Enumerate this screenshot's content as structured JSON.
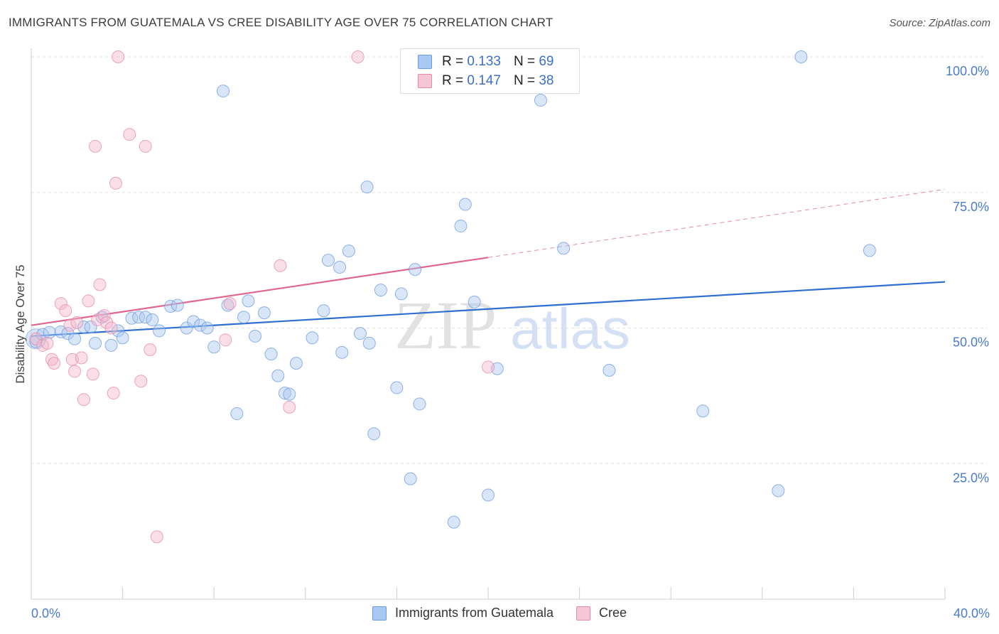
{
  "title": "IMMIGRANTS FROM GUATEMALA VS CREE DISABILITY AGE OVER 75 CORRELATION CHART",
  "source": "Source: ZipAtlas.com",
  "watermark": {
    "zip": "ZIP",
    "atlas": "atlas"
  },
  "legend": {
    "r_label": "R =",
    "n_label": "N =",
    "rows": [
      {
        "r": "0.133",
        "n": "69"
      },
      {
        "r": "0.147",
        "n": "38"
      }
    ]
  },
  "chart_data": {
    "type": "scatter",
    "xlabel": "",
    "ylabel": "Disability Age Over 75",
    "xlim": [
      0,
      40
    ],
    "ylim": [
      0,
      100
    ],
    "x_tick_labels": [
      "0.0%",
      "40.0%"
    ],
    "y_tick_labels": [
      "25.0%",
      "50.0%",
      "75.0%",
      "100.0%"
    ],
    "y_ticks": [
      25,
      50,
      75,
      100
    ],
    "grid": "horizontal dashed",
    "legend_position": "top-center",
    "series": [
      {
        "name": "Immigrants from Guatemala",
        "color": "#6b9be0",
        "fill": "#aac8f0",
        "trend": {
          "x": [
            0,
            40
          ],
          "y": [
            48.5,
            58.5
          ],
          "dashed": false
        },
        "points": [
          [
            0.2,
            47.5
          ],
          [
            0.5,
            48.8
          ],
          [
            0.8,
            49.2
          ],
          [
            1.3,
            49.3
          ],
          [
            1.6,
            49.0
          ],
          [
            1.9,
            48.0
          ],
          [
            2.3,
            50.2
          ],
          [
            2.6,
            50.2
          ],
          [
            2.8,
            47.2
          ],
          [
            3.1,
            52.0
          ],
          [
            3.5,
            46.8
          ],
          [
            3.8,
            49.5
          ],
          [
            4.0,
            48.2
          ],
          [
            4.4,
            51.8
          ],
          [
            4.7,
            52.0
          ],
          [
            5.0,
            52.0
          ],
          [
            5.3,
            51.5
          ],
          [
            5.6,
            49.5
          ],
          [
            6.1,
            54.0
          ],
          [
            6.4,
            54.2
          ],
          [
            6.8,
            50.0
          ],
          [
            7.1,
            51.2
          ],
          [
            7.4,
            50.5
          ],
          [
            7.7,
            50.0
          ],
          [
            8.0,
            46.5
          ],
          [
            8.4,
            93.7
          ],
          [
            8.6,
            54.2
          ],
          [
            9.0,
            34.2
          ],
          [
            9.3,
            52.0
          ],
          [
            9.5,
            55.0
          ],
          [
            9.8,
            48.5
          ],
          [
            10.2,
            52.8
          ],
          [
            10.5,
            45.2
          ],
          [
            10.8,
            41.2
          ],
          [
            11.1,
            38.0
          ],
          [
            11.3,
            37.8
          ],
          [
            11.6,
            43.5
          ],
          [
            12.3,
            48.2
          ],
          [
            12.8,
            53.2
          ],
          [
            13.0,
            62.5
          ],
          [
            13.5,
            61.2
          ],
          [
            13.6,
            45.5
          ],
          [
            13.9,
            64.2
          ],
          [
            14.4,
            49.0
          ],
          [
            14.7,
            76.0
          ],
          [
            14.8,
            47.2
          ],
          [
            15.0,
            30.5
          ],
          [
            15.3,
            57.0
          ],
          [
            16.0,
            39.0
          ],
          [
            16.2,
            56.3
          ],
          [
            16.6,
            22.2
          ],
          [
            16.8,
            60.8
          ],
          [
            17.0,
            36.0
          ],
          [
            18.5,
            14.2
          ],
          [
            18.8,
            68.8
          ],
          [
            19.0,
            72.8
          ],
          [
            19.4,
            54.8
          ],
          [
            20.0,
            19.2
          ],
          [
            20.4,
            42.5
          ],
          [
            20.6,
            100.0
          ],
          [
            22.3,
            92.0
          ],
          [
            23.3,
            64.7
          ],
          [
            25.3,
            42.2
          ],
          [
            29.4,
            34.7
          ],
          [
            32.7,
            20.0
          ],
          [
            33.7,
            100.0
          ],
          [
            36.7,
            64.3
          ]
        ]
      },
      {
        "name": "Cree",
        "color": "#e68aab",
        "fill": "#f5b8cc",
        "trend": {
          "x": [
            0,
            20
          ],
          "y": [
            50.5,
            63.0
          ],
          "dashed": false,
          "ext_x": [
            20,
            40
          ],
          "ext_y": [
            63.0,
            75.6
          ]
        },
        "points": [
          [
            0.2,
            48.0
          ],
          [
            0.5,
            46.8
          ],
          [
            0.7,
            47.2
          ],
          [
            0.9,
            44.2
          ],
          [
            1.0,
            43.5
          ],
          [
            1.3,
            54.5
          ],
          [
            1.5,
            53.2
          ],
          [
            1.7,
            50.5
          ],
          [
            1.8,
            44.2
          ],
          [
            1.9,
            42.0
          ],
          [
            2.0,
            51.0
          ],
          [
            2.2,
            44.5
          ],
          [
            2.3,
            36.8
          ],
          [
            2.5,
            55.0
          ],
          [
            2.7,
            41.5
          ],
          [
            2.8,
            83.5
          ],
          [
            2.9,
            51.5
          ],
          [
            3.0,
            58.0
          ],
          [
            3.2,
            52.3
          ],
          [
            3.3,
            51.0
          ],
          [
            3.5,
            50.0
          ],
          [
            3.6,
            38.0
          ],
          [
            3.7,
            76.7
          ],
          [
            3.8,
            100.0
          ],
          [
            4.3,
            85.7
          ],
          [
            4.8,
            40.2
          ],
          [
            5.0,
            83.5
          ],
          [
            5.2,
            46.0
          ],
          [
            5.5,
            11.5
          ],
          [
            8.5,
            47.8
          ],
          [
            8.7,
            54.5
          ],
          [
            10.9,
            61.5
          ],
          [
            11.3,
            35.4
          ],
          [
            14.3,
            100.0
          ],
          [
            20.0,
            42.8
          ]
        ]
      }
    ]
  }
}
